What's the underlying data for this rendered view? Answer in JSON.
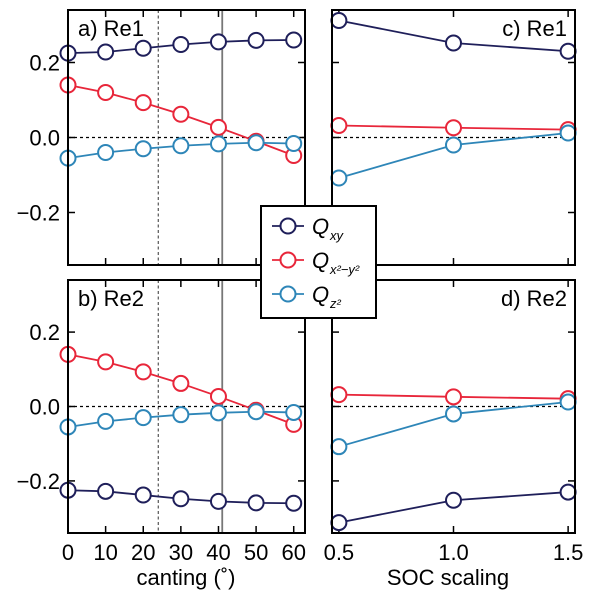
{
  "chart_data": [
    {
      "panel": "a) Re1",
      "type": "line",
      "xlabel": "",
      "x": [
        0,
        10,
        20,
        30,
        40,
        50,
        60
      ],
      "xlim": [
        0,
        63
      ],
      "ylim": [
        -0.34,
        0.34
      ],
      "yticks": [
        0.2,
        0.0,
        -0.2
      ],
      "ytick_labels": [
        "0.2",
        "0.0",
        "−0.2"
      ],
      "vlines": [
        {
          "x": 24,
          "style": "dashed"
        },
        {
          "x": 41,
          "style": "solid"
        }
      ],
      "series": [
        {
          "name": "Qxy",
          "values": [
            0.225,
            0.228,
            0.238,
            0.248,
            0.255,
            0.259,
            0.26
          ]
        },
        {
          "name": "Qx2-y2",
          "values": [
            0.14,
            0.12,
            0.093,
            0.062,
            0.027,
            -0.01,
            -0.048
          ]
        },
        {
          "name": "Qz2",
          "values": [
            -0.055,
            -0.04,
            -0.03,
            -0.022,
            -0.017,
            -0.014,
            -0.016
          ]
        }
      ]
    },
    {
      "panel": "b) Re2",
      "type": "line",
      "xlabel": "canting (˚)",
      "x": [
        0,
        10,
        20,
        30,
        40,
        50,
        60
      ],
      "xlim": [
        0,
        63
      ],
      "ylim": [
        -0.34,
        0.34
      ],
      "xticks": [
        0,
        10,
        20,
        30,
        40,
        50,
        60
      ],
      "xtick_labels": [
        "0",
        "10",
        "20",
        "30",
        "40",
        "50",
        "60"
      ],
      "yticks": [
        0.2,
        0.0,
        -0.2
      ],
      "ytick_labels": [
        "0.2",
        "0.0",
        "−0.2"
      ],
      "vlines": [
        {
          "x": 24,
          "style": "dashed"
        },
        {
          "x": 41,
          "style": "solid"
        }
      ],
      "series": [
        {
          "name": "Qxy",
          "values": [
            -0.225,
            -0.228,
            -0.238,
            -0.248,
            -0.255,
            -0.259,
            -0.26
          ]
        },
        {
          "name": "Qx2-y2",
          "values": [
            0.14,
            0.12,
            0.093,
            0.062,
            0.027,
            -0.01,
            -0.048
          ]
        },
        {
          "name": "Qz2",
          "values": [
            -0.055,
            -0.04,
            -0.03,
            -0.022,
            -0.017,
            -0.014,
            -0.016
          ]
        }
      ]
    },
    {
      "panel": "c) Re1",
      "type": "line",
      "xlabel": "",
      "x": [
        0.5,
        1.0,
        1.5
      ],
      "xlim": [
        0.47,
        1.53
      ],
      "ylim": [
        -0.34,
        0.34
      ],
      "series": [
        {
          "name": "Qxy",
          "values": [
            0.312,
            0.252,
            0.23
          ]
        },
        {
          "name": "Qx2-y2",
          "values": [
            0.032,
            0.026,
            0.021
          ]
        },
        {
          "name": "Qz2",
          "values": [
            -0.108,
            -0.02,
            0.012
          ]
        }
      ]
    },
    {
      "panel": "d) Re2",
      "type": "line",
      "xlabel": "SOC scaling",
      "x": [
        0.5,
        1.0,
        1.5
      ],
      "xlim": [
        0.47,
        1.53
      ],
      "ylim": [
        -0.34,
        0.34
      ],
      "xticks": [
        0.5,
        1.0,
        1.5
      ],
      "xtick_labels": [
        "0.5",
        "1.0",
        "1.5"
      ],
      "series": [
        {
          "name": "Qxy",
          "values": [
            -0.312,
            -0.252,
            -0.23
          ]
        },
        {
          "name": "Qx2-y2",
          "values": [
            0.032,
            0.026,
            0.021
          ]
        },
        {
          "name": "Qz2",
          "values": [
            -0.108,
            -0.02,
            0.012
          ]
        }
      ]
    }
  ],
  "legend": {
    "placement": "center",
    "entries": [
      {
        "main": "Q",
        "sub": "xy",
        "color": "#1f1f5a"
      },
      {
        "main": "Q",
        "sub": "x²−y²",
        "color": "#e8263a"
      },
      {
        "main": "Q",
        "sub": "z²",
        "color": "#2e86b8"
      }
    ]
  },
  "colors": {
    "Qxy": "#1f1f5a",
    "Qx2-y2": "#e8263a",
    "Qz2": "#2e86b8"
  }
}
